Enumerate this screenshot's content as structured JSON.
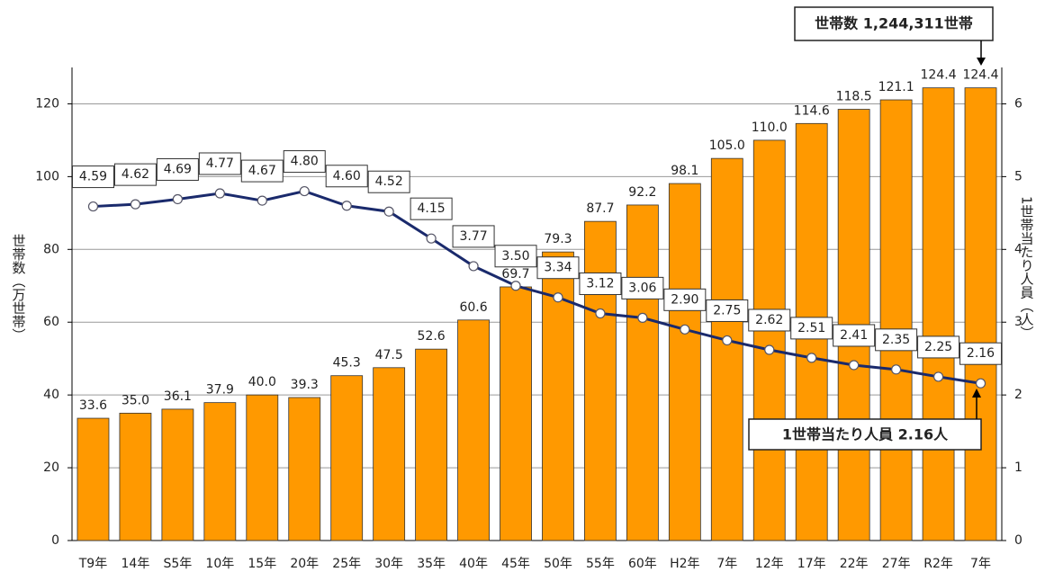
{
  "chart_data": {
    "type": "bar-line",
    "y_label": "世帯数（万世帯）",
    "y2_label": "1世帯当たり人員（人）",
    "categories": [
      "T9年",
      "14年",
      "S5年",
      "10年",
      "15年",
      "20年",
      "25年",
      "30年",
      "35年",
      "40年",
      "45年",
      "50年",
      "55年",
      "60年",
      "H2年",
      "7年",
      "12年",
      "17年",
      "22年",
      "27年",
      "R2年",
      "7年"
    ],
    "series": [
      {
        "type": "bar",
        "color": "#ff9900",
        "values": [
          33.6,
          35.0,
          36.1,
          37.9,
          40.0,
          39.3,
          45.3,
          47.5,
          52.6,
          60.6,
          69.7,
          79.3,
          87.7,
          92.2,
          98.1,
          105.0,
          110.0,
          114.6,
          118.5,
          121.1,
          124.4,
          124.4
        ],
        "value_labels": [
          "33.6",
          "35.0",
          "36.1",
          "37.9",
          "40.0",
          "39.3",
          "45.3",
          "47.5",
          "52.6",
          "60.6",
          "69.7",
          "79.3",
          "87.7",
          "92.2",
          "98.1",
          "105.0",
          "110.0",
          "114.6",
          "118.5",
          "121.1",
          "124.4",
          "124.4"
        ]
      },
      {
        "type": "line",
        "axis": "y2",
        "color": "#1a2a6c",
        "values": [
          4.59,
          4.62,
          4.69,
          4.77,
          4.67,
          4.8,
          4.6,
          4.52,
          4.15,
          3.77,
          3.5,
          3.34,
          3.12,
          3.06,
          2.9,
          2.75,
          2.62,
          2.51,
          2.41,
          2.35,
          2.25,
          2.16
        ],
        "value_labels": [
          "4.59",
          "4.62",
          "4.69",
          "4.77",
          "4.67",
          "4.80",
          "4.60",
          "4.52",
          "4.15",
          "3.77",
          "3.50",
          "3.34",
          "3.12",
          "3.06",
          "2.90",
          "2.75",
          "2.62",
          "2.51",
          "2.41",
          "2.35",
          "2.25",
          "2.16"
        ]
      }
    ],
    "ylim": [
      0,
      130
    ],
    "yticks": [
      0,
      20,
      40,
      60,
      80,
      100,
      120
    ],
    "y2lim": [
      0,
      6.5
    ],
    "y2ticks": [
      0,
      1,
      2,
      3,
      4,
      5,
      6
    ],
    "grid": true,
    "annotations": [
      "世帯数 1,244,311世帯",
      "1世帯当たり人員 2.16人"
    ]
  }
}
